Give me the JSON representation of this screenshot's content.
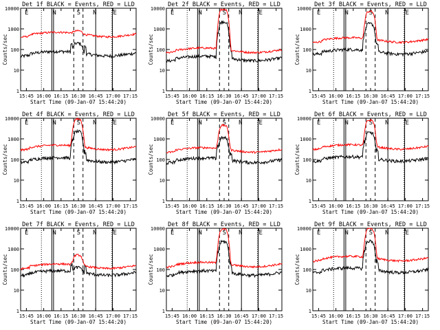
{
  "chart_data": {
    "type": "line",
    "layout": "3x3 grid",
    "scale": "log-y",
    "ylim": [
      1,
      10000
    ],
    "xlabel": "Start Time (09-Jan-07 15:44:20)",
    "ylabel": "Counts/sec",
    "xticks": [
      "15:45",
      "16:00",
      "16:15",
      "16:30",
      "16:45",
      "17:00",
      "17:15"
    ],
    "yticks": [
      "1",
      "10",
      "100",
      "1000",
      "10000"
    ],
    "series_colors": {
      "events": "#000000",
      "lld": "#ff0000"
    },
    "markers": {
      "E": "E",
      "S": "S",
      "N": "N"
    },
    "panels": [
      {
        "title": "Det 1f BLACK = Events, RED = LLD",
        "events_base": 65,
        "lld_base": 550,
        "peak": 800
      },
      {
        "title": "Det 2f BLACK = Events, RED = LLD",
        "events_base": 38,
        "lld_base": 95,
        "peak": 9000
      },
      {
        "title": "Det 3f BLACK = Events, RED = LLD",
        "events_base": 80,
        "lld_base": 300,
        "peak": 7000
      },
      {
        "title": "Det 4f BLACK = Events, RED = LLD",
        "events_base": 100,
        "lld_base": 400,
        "peak": 9000
      },
      {
        "title": "Det 5f BLACK = Events, RED = LLD",
        "events_base": 95,
        "lld_base": 300,
        "peak": 4500
      },
      {
        "title": "Det 6f BLACK = Events, RED = LLD",
        "events_base": 110,
        "lld_base": 420,
        "peak": 8000
      },
      {
        "title": "Det 7f BLACK = Events, RED = LLD",
        "events_base": 70,
        "lld_base": 150,
        "peak": 500
      },
      {
        "title": "Det 8f BLACK = Events, RED = LLD",
        "events_base": 70,
        "lld_base": 180,
        "peak": 9000
      },
      {
        "title": "Det 9f BLACK = Events, RED = LLD",
        "events_base": 95,
        "lld_base": 350,
        "peak": 9500
      }
    ]
  }
}
